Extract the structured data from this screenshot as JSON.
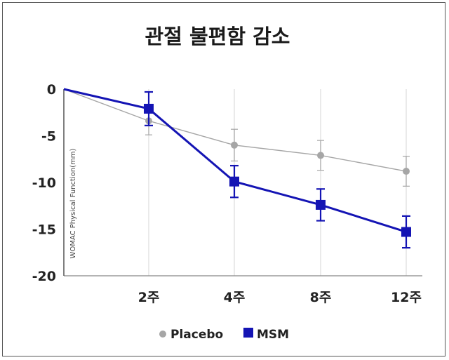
{
  "chart_data": {
    "type": "line",
    "title": "관절 불편함 감소",
    "ylabel": "WOMAC Physical Function(mm)",
    "xlabel": "",
    "ylim": [
      -20,
      0
    ],
    "yticks": [
      0,
      -5,
      -10,
      -15,
      -20
    ],
    "ytick_labels": [
      "0",
      "-5",
      "-10",
      "-15",
      "-20"
    ],
    "x": [
      0,
      1,
      2,
      3,
      4
    ],
    "categories": [
      "",
      "2주",
      "4주",
      "8주",
      "12주"
    ],
    "grid": "vertical",
    "legend_position": "bottom",
    "series": [
      {
        "name": "Placebo",
        "color": "#a6a6a6",
        "marker": "circle",
        "values": [
          0,
          -3.4,
          -6.0,
          -7.1,
          -8.8
        ],
        "error": [
          null,
          1.5,
          1.7,
          1.6,
          1.6
        ]
      },
      {
        "name": "MSM",
        "color": "#1414b4",
        "marker": "square",
        "values": [
          0,
          -2.1,
          -9.9,
          -12.4,
          -15.3
        ],
        "error": [
          null,
          1.8,
          1.7,
          1.7,
          1.7
        ]
      }
    ]
  }
}
